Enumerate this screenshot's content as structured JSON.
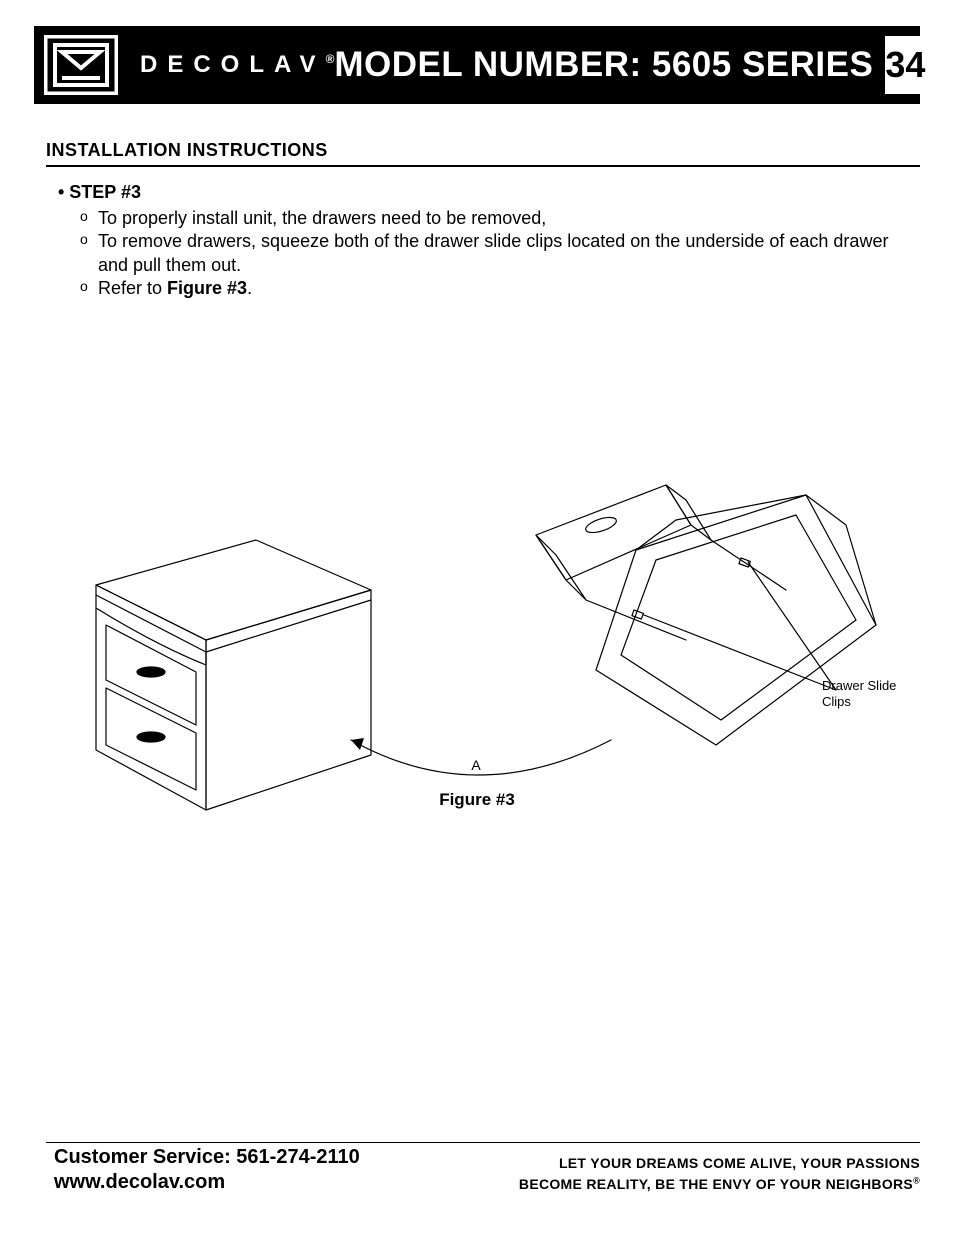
{
  "header": {
    "brand": "DECOLAV",
    "brand_reg": "®",
    "model_label": "MODEL NUMBER: 5605 SERIES",
    "page_number": "34",
    "bar_bg": "#000000",
    "text_color": "#ffffff"
  },
  "section": {
    "title": "INSTALLATION INSTRUCTIONS"
  },
  "step": {
    "label": "• STEP #3",
    "bullets": [
      "To properly install unit, the drawers need to be removed,",
      "To remove drawers, squeeze both of the drawer slide clips located on the underside of each drawer and pull them out.",
      "Refer to <b>Figure #3</b>."
    ]
  },
  "figure": {
    "caption": "Figure #3",
    "callout_drawer_slide": "Drawer Slide\nClips",
    "letter_A": "A",
    "line_color": "#000000",
    "line_width": 1.2
  },
  "footer": {
    "cs_label": "Customer Service: 561-274-2110",
    "url": "www.decolav.com",
    "tagline1": "LET YOUR DREAMS COME ALIVE, YOUR PASSIONS",
    "tagline2": "BECOME REALITY, BE THE ENVY OF YOUR NEIGHBORS",
    "tagline_reg": "®"
  }
}
